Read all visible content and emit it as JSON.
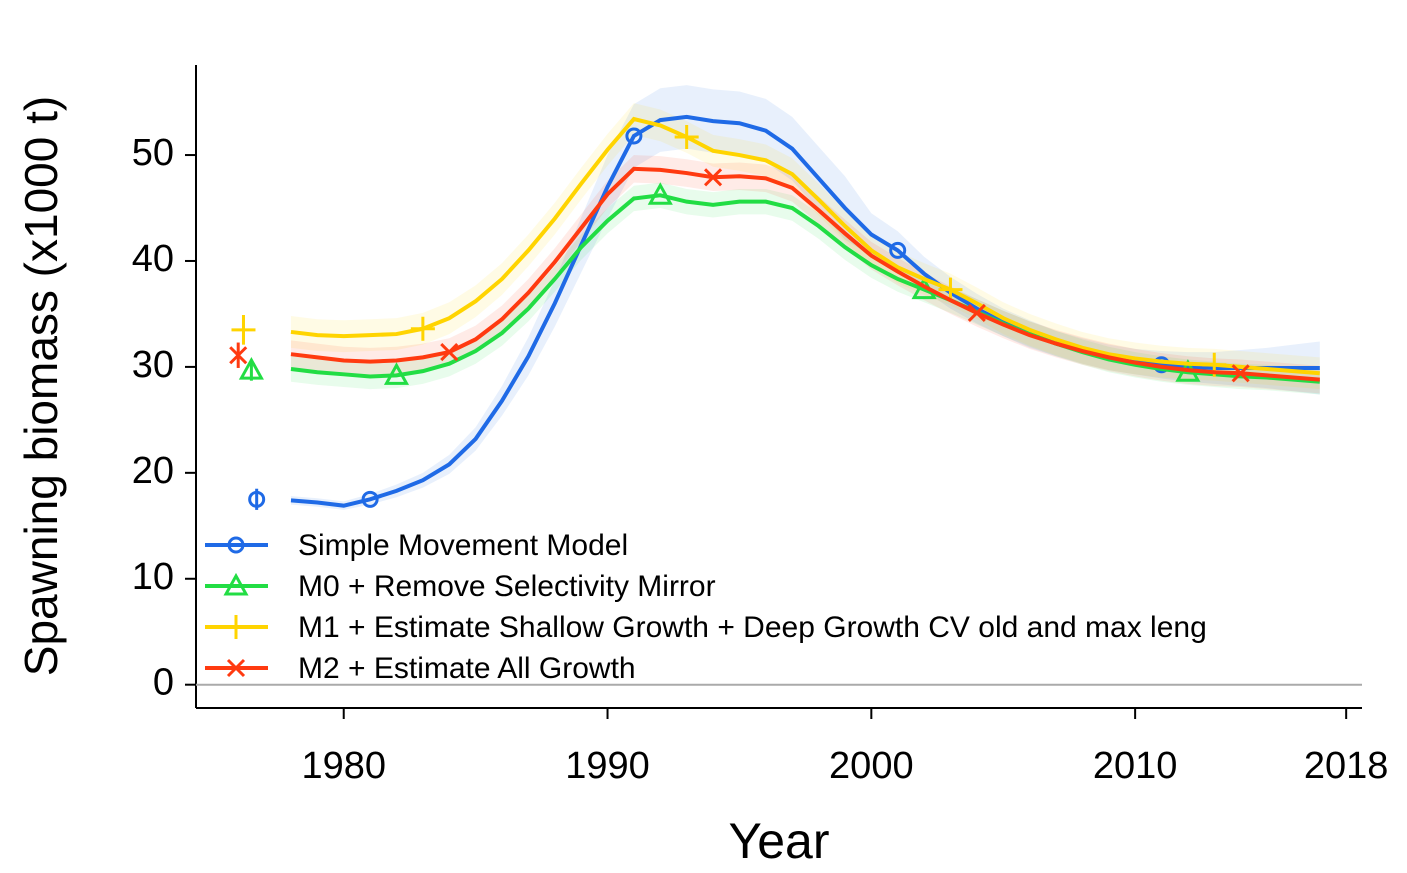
{
  "chart_data": {
    "type": "line",
    "x_label": "Year",
    "y_label": "Spawning biomass (x1000 t)",
    "xlim": [
      1974.4,
      2018.6
    ],
    "ylim": [
      -2.2,
      58.5
    ],
    "xticks": [
      1980,
      1990,
      2000,
      2010,
      2018
    ],
    "yticks": [
      0,
      10,
      20,
      30,
      40,
      50
    ],
    "reference_line": 0,
    "legend": "bottomleft",
    "x": [
      1978,
      1979,
      1980,
      1981,
      1982,
      1983,
      1984,
      1985,
      1986,
      1987,
      1988,
      1989,
      1990,
      1991,
      1992,
      1993,
      1994,
      1995,
      1996,
      1997,
      1998,
      1999,
      2000,
      2001,
      2002,
      2003,
      2004,
      2005,
      2006,
      2007,
      2008,
      2009,
      2010,
      2011,
      2012,
      2013,
      2014,
      2015,
      2016,
      2017
    ],
    "series": [
      {
        "name": "Simple Movement Model",
        "color": "#1f6ae6",
        "marker": "circle",
        "initial": {
          "x": 1976.7,
          "value": 17.5,
          "error": 1.0
        },
        "values": [
          17.4,
          17.2,
          16.9,
          17.5,
          18.3,
          19.3,
          20.8,
          23.2,
          26.8,
          31.0,
          36.0,
          41.5,
          47.0,
          51.8,
          53.3,
          53.6,
          53.2,
          53.0,
          52.3,
          50.6,
          47.8,
          45.0,
          42.5,
          41.0,
          38.8,
          37.0,
          35.5,
          34.2,
          33.1,
          32.2,
          31.5,
          30.9,
          30.5,
          30.2,
          30.0,
          29.9,
          29.9,
          29.9,
          29.9,
          29.9
        ],
        "lower": [
          17.0,
          16.8,
          16.5,
          17.0,
          17.7,
          18.6,
          19.9,
          22.1,
          25.4,
          29.2,
          33.8,
          38.9,
          44.0,
          48.8,
          50.3,
          50.6,
          50.2,
          50.0,
          49.3,
          47.6,
          44.8,
          42.0,
          40.5,
          39.2,
          37.2,
          35.5,
          34.1,
          32.9,
          31.8,
          31.0,
          30.3,
          29.7,
          29.3,
          28.9,
          28.6,
          28.4,
          28.2,
          28.0,
          27.7,
          27.4
        ],
        "upper": [
          17.8,
          17.6,
          17.3,
          18.0,
          18.9,
          20.0,
          21.7,
          24.3,
          28.2,
          32.8,
          38.2,
          44.1,
          50.0,
          54.8,
          56.3,
          56.6,
          56.2,
          56.0,
          55.3,
          53.6,
          50.8,
          48.0,
          44.5,
          42.8,
          40.4,
          38.5,
          36.9,
          35.5,
          34.4,
          33.4,
          32.7,
          32.1,
          31.7,
          31.5,
          31.4,
          31.4,
          31.6,
          31.8,
          32.1,
          32.4
        ]
      },
      {
        "name": "M0 + Remove Selectivity Mirror",
        "color": "#22dd44",
        "marker": "triangle",
        "initial": {
          "x": 1976.5,
          "value": 29.7,
          "error": 1.0
        },
        "values": [
          29.8,
          29.5,
          29.3,
          29.1,
          29.2,
          29.6,
          30.3,
          31.5,
          33.2,
          35.5,
          38.3,
          41.3,
          43.8,
          45.9,
          46.2,
          45.6,
          45.3,
          45.6,
          45.6,
          45.0,
          43.3,
          41.3,
          39.6,
          38.3,
          37.3,
          36.3,
          35.2,
          34.1,
          33.1,
          32.2,
          31.4,
          30.7,
          30.2,
          29.8,
          29.5,
          29.3,
          29.1,
          29.0,
          28.8,
          28.6
        ],
        "lower": [
          28.6,
          28.3,
          28.1,
          27.9,
          28.0,
          28.4,
          29.1,
          30.3,
          32.0,
          34.3,
          37.1,
          40.1,
          42.6,
          44.7,
          45.0,
          44.4,
          44.1,
          44.4,
          44.4,
          43.8,
          42.1,
          40.1,
          38.4,
          37.1,
          36.1,
          35.1,
          34.0,
          32.9,
          31.9,
          31.0,
          30.2,
          29.5,
          29.0,
          28.6,
          28.3,
          28.1,
          27.9,
          27.8,
          27.6,
          27.4
        ],
        "upper": [
          31.0,
          30.7,
          30.5,
          30.3,
          30.4,
          30.8,
          31.5,
          32.7,
          34.4,
          36.7,
          39.5,
          42.5,
          45.0,
          47.1,
          47.4,
          46.8,
          46.5,
          46.8,
          46.8,
          46.2,
          44.5,
          42.5,
          40.8,
          39.5,
          38.5,
          37.5,
          36.4,
          35.3,
          34.3,
          33.4,
          32.6,
          31.9,
          31.4,
          31.0,
          30.7,
          30.5,
          30.3,
          30.2,
          30.0,
          29.8
        ]
      },
      {
        "name": "M1 + Estimate Shallow Growth + Deep Growth CV old and max leng",
        "color": "#ffd400",
        "marker": "plus",
        "initial": {
          "x": 1976.2,
          "value": 33.5,
          "error": 1.4
        },
        "values": [
          33.3,
          33.0,
          32.9,
          33.0,
          33.1,
          33.6,
          34.6,
          36.2,
          38.3,
          41.0,
          44.0,
          47.3,
          50.5,
          53.4,
          52.8,
          51.7,
          50.4,
          50.0,
          49.5,
          48.2,
          45.8,
          43.3,
          41.0,
          39.4,
          38.3,
          37.3,
          36.0,
          34.6,
          33.5,
          32.6,
          31.8,
          31.2,
          30.8,
          30.5,
          30.3,
          30.2,
          30.0,
          29.8,
          29.6,
          29.4
        ],
        "lower": [
          31.8,
          31.5,
          31.4,
          31.5,
          31.6,
          32.1,
          33.1,
          34.7,
          36.8,
          39.5,
          42.5,
          45.8,
          49.0,
          51.9,
          51.3,
          50.2,
          48.9,
          48.5,
          48.0,
          46.7,
          44.3,
          41.8,
          39.5,
          37.9,
          36.8,
          35.8,
          34.5,
          33.1,
          32.0,
          31.1,
          30.3,
          29.7,
          29.3,
          29.0,
          28.8,
          28.7,
          28.5,
          28.3,
          28.1,
          27.9
        ],
        "upper": [
          34.8,
          34.5,
          34.4,
          34.5,
          34.6,
          35.1,
          36.1,
          37.7,
          39.8,
          42.5,
          45.5,
          48.8,
          52.0,
          54.9,
          54.3,
          53.2,
          51.9,
          51.5,
          51.0,
          49.7,
          47.3,
          44.8,
          42.5,
          40.9,
          39.8,
          38.8,
          37.5,
          36.1,
          35.0,
          34.1,
          33.3,
          32.7,
          32.3,
          32.0,
          31.8,
          31.7,
          31.5,
          31.3,
          31.1,
          30.9
        ]
      },
      {
        "name": "M2 + Estimate All Growth",
        "color": "#ff3a10",
        "marker": "cross",
        "initial": {
          "x": 1976.0,
          "value": 31.1,
          "error": 1.2
        },
        "values": [
          31.2,
          30.9,
          30.6,
          30.5,
          30.6,
          30.9,
          31.4,
          32.6,
          34.5,
          37.0,
          39.9,
          43.1,
          46.3,
          48.7,
          48.6,
          48.3,
          47.9,
          48.0,
          47.8,
          46.9,
          44.8,
          42.6,
          40.5,
          39.0,
          37.6,
          36.3,
          35.1,
          34.0,
          33.0,
          32.2,
          31.5,
          30.9,
          30.4,
          30.0,
          29.7,
          29.5,
          29.4,
          29.2,
          29.0,
          28.8
        ],
        "lower": [
          29.9,
          29.6,
          29.3,
          29.2,
          29.3,
          29.6,
          30.1,
          31.3,
          33.2,
          35.7,
          38.6,
          41.8,
          45.0,
          47.4,
          47.3,
          47.0,
          46.6,
          46.7,
          46.5,
          45.6,
          43.5,
          41.3,
          39.2,
          37.7,
          36.3,
          35.0,
          33.8,
          32.7,
          31.7,
          30.9,
          30.2,
          29.6,
          29.1,
          28.7,
          28.4,
          28.2,
          28.1,
          27.9,
          27.7,
          27.5
        ],
        "upper": [
          32.5,
          32.2,
          31.9,
          31.8,
          31.9,
          32.2,
          32.7,
          33.9,
          35.8,
          38.3,
          41.2,
          44.4,
          47.6,
          50.0,
          49.9,
          49.6,
          49.2,
          49.3,
          49.1,
          48.2,
          46.1,
          43.9,
          41.8,
          40.3,
          38.9,
          37.6,
          36.4,
          35.3,
          34.3,
          33.5,
          32.8,
          32.2,
          31.7,
          31.3,
          31.0,
          30.8,
          30.7,
          30.5,
          30.3,
          30.1
        ]
      }
    ]
  }
}
